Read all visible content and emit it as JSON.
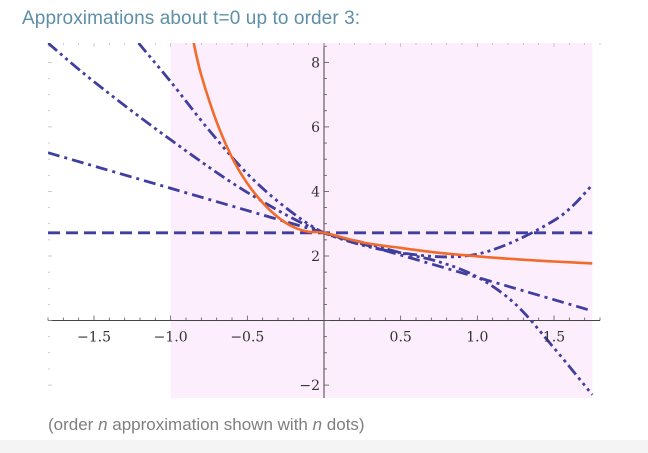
{
  "heading": "Approximations about t=0 up to order 3:",
  "caption": {
    "part1": "(order ",
    "n1": "n",
    "part2": " approximation shown with ",
    "n2": "n",
    "part3": " dots)"
  },
  "colors": {
    "heading": "#5d8fa6",
    "function": "#f26b2a",
    "approximation": "#3f3f9f",
    "region_fill": "#fdeefd",
    "caption": "#7f7f7f"
  },
  "chart_data": {
    "type": "line",
    "title": "Approximations about t=0 up to order 3:",
    "xlabel": "",
    "ylabel": "",
    "xlim": [
      -1.8,
      1.8
    ],
    "ylim": [
      -2.4,
      8.6
    ],
    "grid": false,
    "x_ticks": [
      -1.5,
      -1.0,
      -0.5,
      0.5,
      1.0,
      1.5
    ],
    "x_tick_labels": [
      "−1.5",
      "−1.0",
      "−0.5",
      "0.5",
      "1.0",
      "1.5"
    ],
    "y_ticks": [
      -2,
      2,
      4,
      6,
      8
    ],
    "y_tick_labels": [
      "−2",
      "2",
      "4",
      "6",
      "8"
    ],
    "shaded_region": {
      "x_from": -1.0,
      "x_to": 1.75
    },
    "series": [
      {
        "name": "function",
        "order": null,
        "color": "#f26b2a",
        "style": "solid",
        "x": [
          -0.85,
          -0.8,
          -0.7,
          -0.6,
          -0.5,
          -0.4,
          -0.3,
          -0.2,
          -0.1,
          0.0,
          0.25,
          0.5,
          0.75,
          1.0,
          1.25,
          1.5,
          1.75
        ],
        "y": [
          8.6,
          7.6,
          6.15,
          5.05,
          4.25,
          3.65,
          3.2,
          2.9,
          2.75,
          2.72,
          2.42,
          2.25,
          2.1,
          1.99,
          1.9,
          1.83,
          1.77
        ]
      },
      {
        "name": "order 0 approximation",
        "order": 0,
        "color": "#3f3f9f",
        "style": "dashed",
        "x": [
          -1.8,
          1.75
        ],
        "y": [
          2.72,
          2.72
        ]
      },
      {
        "name": "order 1 approximation",
        "order": 1,
        "color": "#3f3f9f",
        "style": "dash-dot",
        "x": [
          -1.8,
          0.0,
          1.75
        ],
        "y": [
          5.2,
          2.72,
          0.3
        ]
      },
      {
        "name": "order 2 approximation",
        "order": 2,
        "color": "#3f3f9f",
        "style": "dash-dot-dot",
        "x": [
          -1.8,
          -1.5,
          -1.0,
          -0.5,
          0.0,
          0.5,
          1.0,
          1.5,
          1.75
        ],
        "y": [
          8.6,
          7.4,
          5.6,
          3.97,
          2.72,
          2.1,
          2.06,
          3.1,
          4.2
        ]
      },
      {
        "name": "order 3 approximation",
        "order": 3,
        "color": "#3f3f9f",
        "style": "dash-dot-dot-dot",
        "x": [
          -1.21,
          -1.0,
          -0.75,
          -0.5,
          -0.25,
          0.0,
          0.25,
          0.5,
          0.75,
          1.0,
          1.25,
          1.5,
          1.75
        ],
        "y": [
          8.6,
          7.4,
          5.9,
          4.55,
          3.5,
          2.72,
          2.42,
          2.1,
          1.82,
          1.35,
          0.5,
          -0.85,
          -2.3
        ]
      }
    ]
  }
}
